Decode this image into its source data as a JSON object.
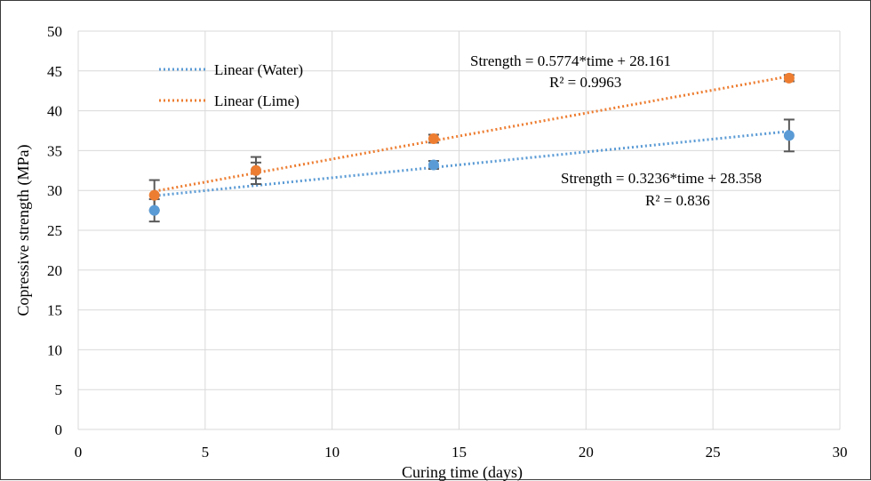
{
  "chart_data": {
    "type": "scatter",
    "title": "",
    "xlabel": "Curing time (days)",
    "ylabel": "Copressive strength (MPa)",
    "xlim": [
      0,
      30
    ],
    "ylim": [
      0,
      50
    ],
    "x_ticks": [
      0,
      5,
      10,
      15,
      20,
      25,
      30
    ],
    "y_ticks": [
      0,
      5,
      10,
      15,
      20,
      25,
      30,
      35,
      40,
      45,
      50
    ],
    "grid": true,
    "legend_position": "top-left",
    "series": [
      {
        "key": "water",
        "color": "#5B9BD5",
        "x": [
          3,
          7,
          14,
          28
        ],
        "y": [
          27.5,
          32.5,
          33.2,
          36.9
        ],
        "error": [
          1.4,
          1.0,
          0.5,
          2.0
        ]
      },
      {
        "key": "lime",
        "color": "#ED7D31",
        "x": [
          3,
          7,
          14,
          28
        ],
        "y": [
          29.4,
          32.5,
          36.5,
          44.1
        ],
        "error": [
          1.9,
          1.7,
          0.5,
          0.4
        ]
      }
    ],
    "trendlines": [
      {
        "legend_label": "Linear (Water)",
        "color": "#5B9BD5",
        "slope": 0.3236,
        "intercept": 28.358,
        "x_range": [
          3,
          28
        ],
        "equation": "Strength = 0.3236*time + 28.358",
        "r2": "R² = 0.836"
      },
      {
        "legend_label": "Linear (Lime)",
        "color": "#ED7D31",
        "slope": 0.5774,
        "intercept": 28.161,
        "x_range": [
          3,
          28
        ],
        "equation": "Strength = 0.5774*time + 28.161",
        "r2": "R² = 0.9963"
      }
    ],
    "gridline_color": "#D9D9D9",
    "error_bar_color": "#595959"
  }
}
